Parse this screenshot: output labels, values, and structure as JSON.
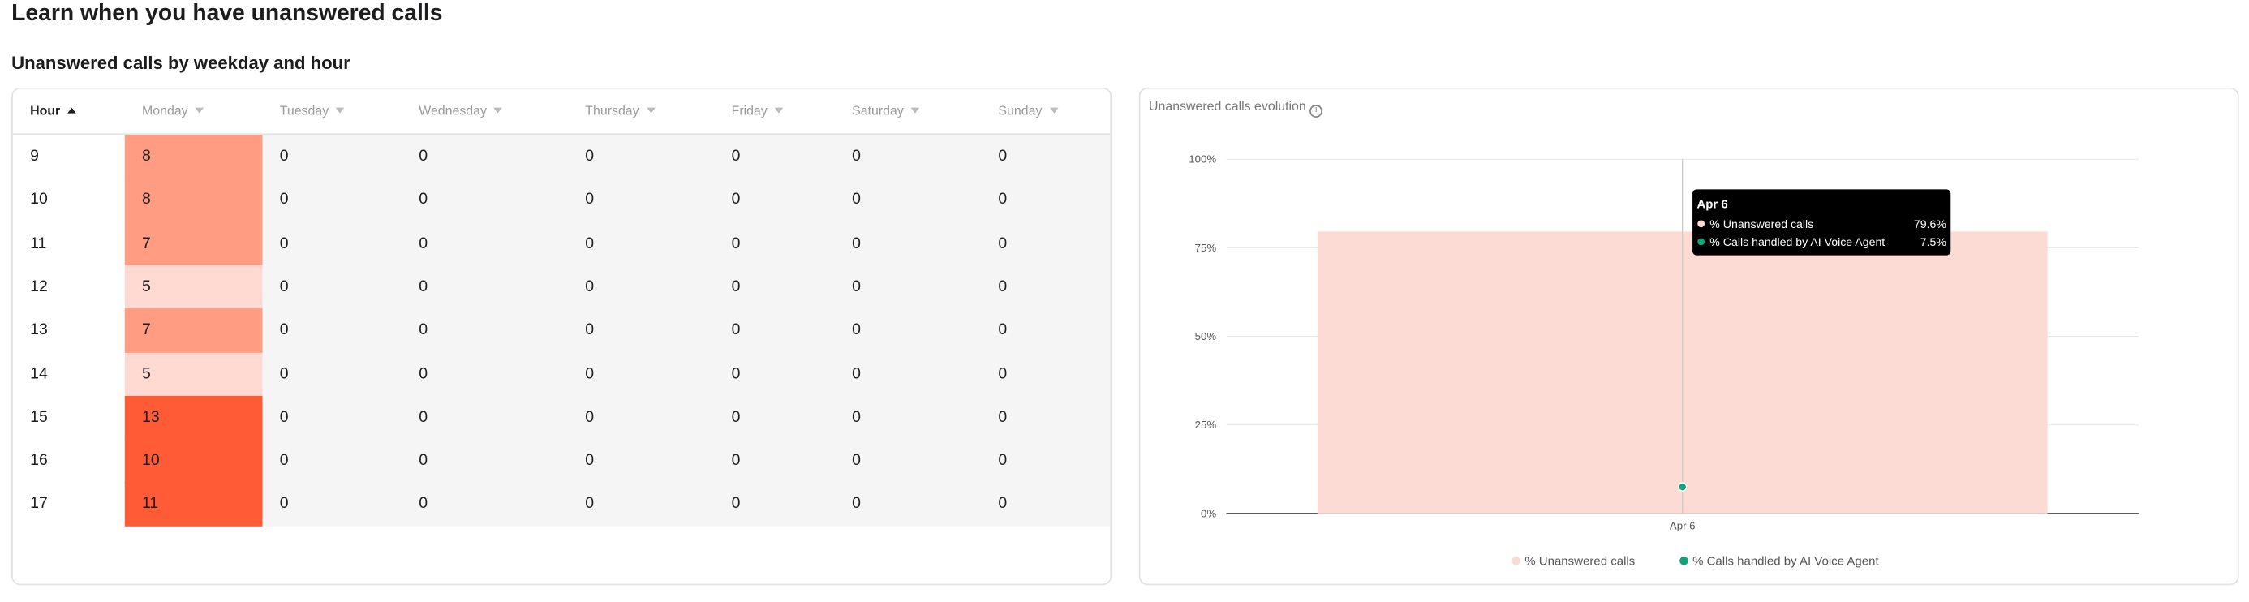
{
  "header": {
    "title": "Learn when you have unanswered calls",
    "subtitle": "Unanswered calls by weekday and hour"
  },
  "table": {
    "columns": [
      "Hour",
      "Monday",
      "Tuesday",
      "Wednesday",
      "Thursday",
      "Friday",
      "Saturday",
      "Sunday"
    ],
    "rows": [
      [
        9,
        8,
        0,
        0,
        0,
        0,
        0,
        0
      ],
      [
        10,
        8,
        0,
        0,
        0,
        0,
        0,
        0
      ],
      [
        11,
        7,
        0,
        0,
        0,
        0,
        0,
        0
      ],
      [
        12,
        5,
        0,
        0,
        0,
        0,
        0,
        0
      ],
      [
        13,
        7,
        0,
        0,
        0,
        0,
        0,
        0
      ],
      [
        14,
        5,
        0,
        0,
        0,
        0,
        0,
        0
      ],
      [
        15,
        13,
        0,
        0,
        0,
        0,
        0,
        0
      ],
      [
        16,
        10,
        0,
        0,
        0,
        0,
        0,
        0
      ],
      [
        17,
        11,
        0,
        0,
        0,
        0,
        0,
        0
      ]
    ],
    "monday_colors": [
      "#ff9c82",
      "#ff9c82",
      "#ff9c82",
      "#ffdad2",
      "#ff9c82",
      "#ffdad2",
      "#ff5b37",
      "#ff5b37",
      "#ff5b37"
    ]
  },
  "chart_data": {
    "type": "bar",
    "title": "Unanswered calls evolution",
    "categories": [
      "Apr 6"
    ],
    "series": [
      {
        "name": "% Unanswered calls",
        "color": "#fddbd5",
        "values": [
          79.6
        ],
        "value_labels": [
          "79.6%"
        ]
      },
      {
        "name": "% Calls handled by AI Voice Agent",
        "color": "#12a37a",
        "values": [
          7.5
        ],
        "value_labels": [
          "7.5%"
        ]
      }
    ],
    "ylim": [
      0,
      100
    ],
    "yticks": [
      {
        "value": 0,
        "label": "0%"
      },
      {
        "value": 25,
        "label": "25%"
      },
      {
        "value": 50,
        "label": "50%"
      },
      {
        "value": 75,
        "label": "75%"
      },
      {
        "value": 100,
        "label": "100%"
      }
    ]
  }
}
